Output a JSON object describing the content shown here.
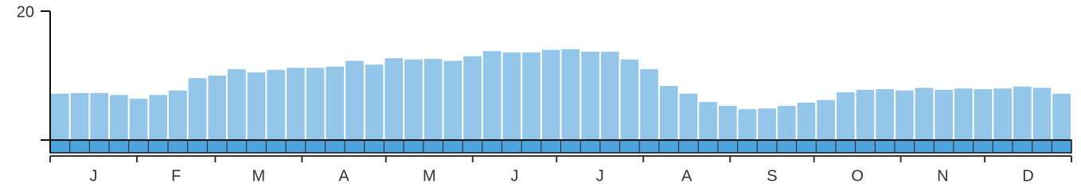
{
  "chart_data": {
    "type": "bar",
    "categories": [
      null,
      null,
      null,
      null,
      null,
      null,
      null,
      null,
      null,
      null,
      null,
      null,
      null,
      null,
      null,
      null,
      null,
      null,
      null,
      null,
      null,
      null,
      null,
      null,
      null,
      null,
      null,
      null,
      null,
      null,
      null,
      null,
      null,
      null,
      null,
      null,
      null,
      null,
      null,
      null,
      null,
      null,
      null,
      null,
      null,
      null,
      null,
      null,
      null,
      null,
      null,
      null
    ],
    "values": [
      7.2,
      7.3,
      7.3,
      7.0,
      6.4,
      7.0,
      7.7,
      9.6,
      10.0,
      11.0,
      10.5,
      10.9,
      11.2,
      11.2,
      11.4,
      12.3,
      11.7,
      12.7,
      12.5,
      12.6,
      12.3,
      13.0,
      13.8,
      13.6,
      13.6,
      14.0,
      14.1,
      13.7,
      13.7,
      12.5,
      11.0,
      8.4,
      7.2,
      5.9,
      5.3,
      4.8,
      4.9,
      5.3,
      5.8,
      6.2,
      7.4,
      7.8,
      7.9,
      7.7,
      8.1,
      7.8,
      8.0,
      7.9,
      8.0,
      8.3,
      8.1,
      7.2
    ],
    "color": "#93c6e8",
    "month_labels": [
      "J",
      "F",
      "M",
      "A",
      "M",
      "J",
      "J",
      "A",
      "S",
      "O",
      "N",
      "D"
    ],
    "ylim": [
      0,
      20
    ],
    "yticks": [
      20
    ]
  }
}
